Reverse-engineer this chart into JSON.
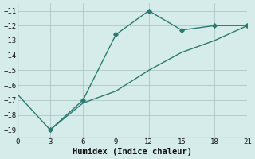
{
  "line1_x": [
    3,
    6,
    9,
    12,
    15,
    18,
    21
  ],
  "line1_y": [
    -19.0,
    -17.0,
    -12.6,
    -11.0,
    -12.3,
    -12.0,
    -12.0
  ],
  "line2_x": [
    0,
    3,
    6,
    9,
    12,
    15,
    18,
    21
  ],
  "line2_y": [
    -16.6,
    -19.0,
    -17.2,
    -16.4,
    -15.0,
    -13.8,
    -13.0,
    -12.0
  ],
  "color": "#2a7a6f",
  "bg_color": "#d6ecea",
  "grid_color": "#aec8c4",
  "xlabel": "Humidex (Indice chaleur)",
  "xlim": [
    0,
    21
  ],
  "ylim": [
    -19.5,
    -10.5
  ],
  "xticks": [
    0,
    3,
    6,
    9,
    12,
    15,
    18,
    21
  ],
  "yticks": [
    -19,
    -18,
    -17,
    -16,
    -15,
    -14,
    -13,
    -12,
    -11
  ],
  "xlabel_fontsize": 7.5,
  "tick_fontsize": 6.5,
  "marker": "D",
  "markersize": 2.8,
  "linewidth": 1.0
}
